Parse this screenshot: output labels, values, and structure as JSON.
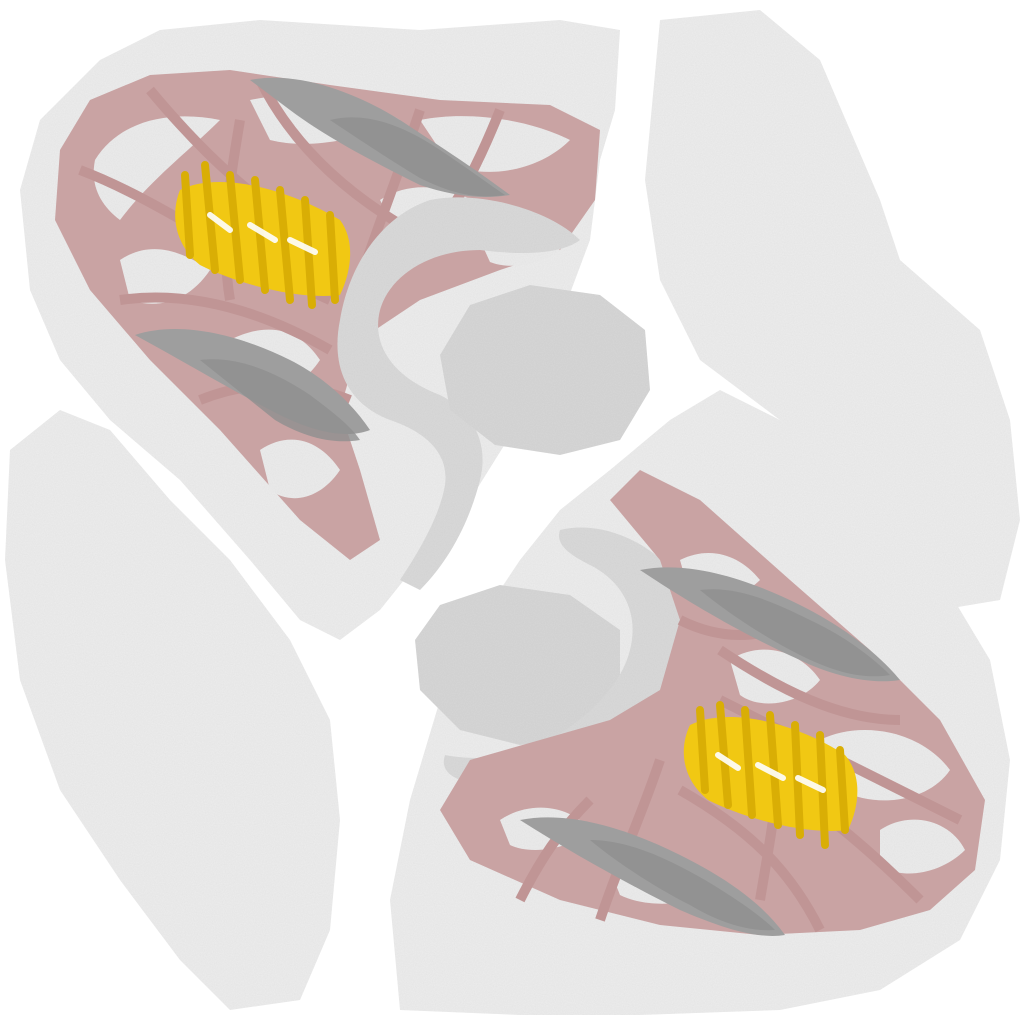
{
  "palette": {
    "background": "#ffffff",
    "paper": "#ededed",
    "paper_shade": "#e3e3e3",
    "leather_white": "#e9e9e9",
    "mesh_pink": "#c9a3a3",
    "stripe_gray": "#9e9e9e",
    "stripe_gray_dark": "#8e8e8e",
    "lace_yellow": "#f1c813",
    "lace_yellow_dark": "#d9ae05",
    "heel_gray": "#d7d7d7",
    "collar_gray": "#dadada"
  },
  "texture_panels": {
    "count": 2
  },
  "icons": [
    "shoe-upper-texture",
    "mesh-lattice",
    "lace-cluster",
    "heel-patch",
    "stripe-swoosh"
  ]
}
